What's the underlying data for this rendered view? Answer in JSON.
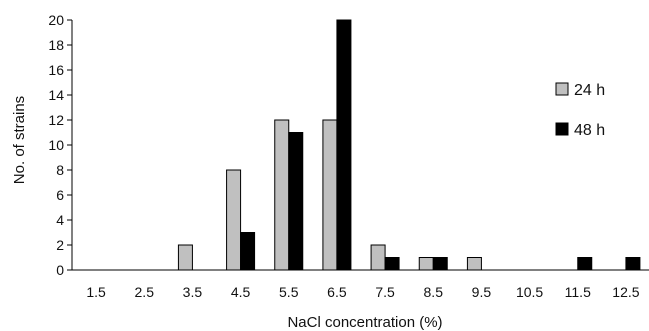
{
  "chart_data": {
    "type": "bar",
    "xlabel": "NaCl concentration (%)",
    "ylabel": "No. of strains",
    "ylim": [
      0,
      20
    ],
    "yticks": [
      "0",
      "2",
      "4",
      "6",
      "8",
      "10",
      "12",
      "14",
      "16",
      "18",
      "20"
    ],
    "categories": [
      "1.5",
      "2.5",
      "3.5",
      "4.5",
      "5.5",
      "6.5",
      "7.5",
      "8.5",
      "9.5",
      "10.5",
      "11.5",
      "12.5"
    ],
    "series": [
      {
        "name": "24 h",
        "color": "#c0c0c0",
        "values": [
          0,
          0,
          2,
          8,
          12,
          12,
          2,
          1,
          1,
          0,
          0,
          0
        ]
      },
      {
        "name": "48 h",
        "color": "#000000",
        "values": [
          0,
          0,
          0,
          3,
          11,
          20,
          1,
          1,
          0,
          0,
          1,
          1
        ]
      }
    ],
    "legend_position": "right",
    "grid": false
  }
}
